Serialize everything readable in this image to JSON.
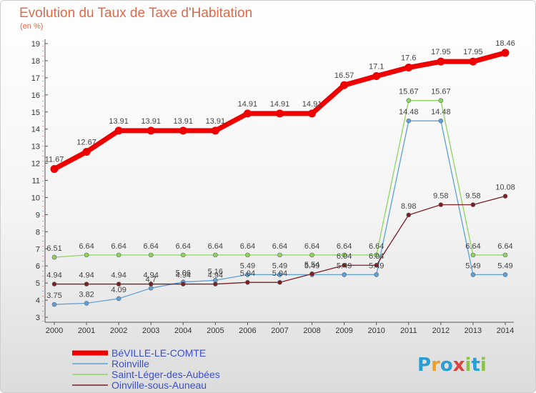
{
  "chart_data": {
    "type": "line",
    "title": "Evolution du Taux de Taxe d'Habitation",
    "subtitle": "(en %)",
    "x": [
      "2000",
      "2001",
      "2002",
      "2003",
      "2004",
      "2005",
      "2006",
      "2007",
      "2008",
      "2009",
      "2010",
      "2011",
      "2012",
      "2013",
      "2014"
    ],
    "yticks": [
      "3",
      "4",
      "5",
      "6",
      "7",
      "8",
      "9",
      "10",
      "11",
      "12",
      "13",
      "14",
      "15",
      "16",
      "17",
      "18",
      "19"
    ],
    "ylim": [
      3,
      19
    ],
    "grid": false,
    "legend": "bottom-left",
    "series": [
      {
        "name": "BéVILLE-LE-COMTE",
        "color": "#ee0000",
        "values": [
          11.67,
          12.67,
          13.91,
          13.91,
          13.91,
          13.91,
          14.91,
          14.91,
          14.91,
          16.57,
          17.1,
          17.6,
          17.95,
          17.95,
          18.46
        ],
        "labels": [
          "11.67",
          "12.67",
          "13.91",
          "13.91",
          "13.91",
          "13.91",
          "14.91",
          "14.91",
          "14.91",
          "16.57",
          "17.1",
          "17.6",
          "17.95",
          "17.95",
          "18.46"
        ]
      },
      {
        "name": "Roinville",
        "color": "#5fa0d8",
        "values": [
          3.75,
          3.82,
          4.09,
          4.7,
          5.06,
          5.16,
          5.49,
          5.49,
          5.49,
          5.49,
          5.49,
          14.48,
          14.48,
          5.49,
          5.49
        ],
        "labels": [
          "3.75",
          "3.82",
          "4.09",
          "4.7",
          "5.06",
          "5.16",
          "5.49",
          "5.49",
          "5.49",
          "5.49",
          "5.49",
          "14.48",
          "14.48",
          "5.49",
          "5.49"
        ]
      },
      {
        "name": "Saint-Léger-des-Aubées",
        "color": "#8fd460",
        "values": [
          6.51,
          6.64,
          6.64,
          6.64,
          6.64,
          6.64,
          6.64,
          6.64,
          6.64,
          6.64,
          6.64,
          15.67,
          15.67,
          6.64,
          6.64
        ],
        "labels": [
          "6.51",
          "6.64",
          "6.64",
          "6.64",
          "6.64",
          "6.64",
          "6.64",
          "6.64",
          "6.64",
          "6.64",
          "6.64",
          "15.67",
          "15.67",
          "6.64",
          "6.64"
        ]
      },
      {
        "name": "Oinville-sous-Auneau",
        "color": "#7a1e22",
        "values": [
          4.94,
          4.94,
          4.94,
          4.94,
          4.94,
          4.94,
          5.04,
          5.04,
          5.54,
          6.04,
          6.04,
          8.98,
          9.58,
          9.58,
          10.08
        ],
        "labels": [
          "4.94",
          "4.94",
          "4.94",
          "4.94",
          "4.94",
          "4.94",
          "5.04",
          "5.04",
          "5.54",
          "6.04",
          "6.04",
          "8.98",
          "9.58",
          "9.58",
          "10.08"
        ]
      }
    ]
  },
  "logo": {
    "text": "Proxiti"
  }
}
